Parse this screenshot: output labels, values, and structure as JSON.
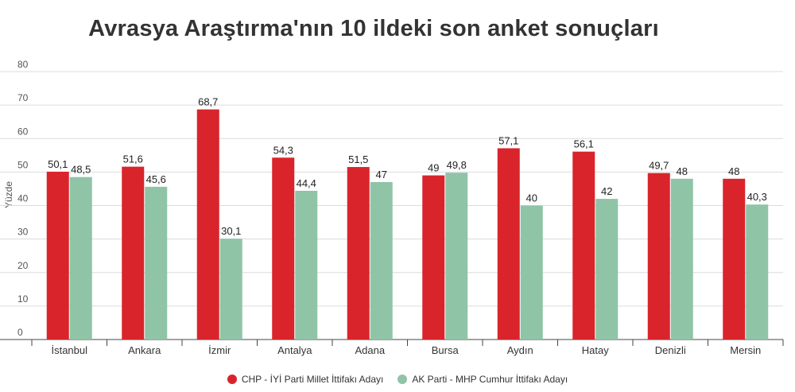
{
  "chart_data": {
    "type": "bar",
    "title": "Avrasya Araştırma'nın 10 ildeki son anket sonuçları",
    "ylabel": "Yüzde",
    "xlabel": "",
    "ylim": [
      0,
      80
    ],
    "yticks": [
      0,
      10,
      20,
      30,
      40,
      50,
      60,
      70,
      80
    ],
    "grid": true,
    "legend_position": "bottom",
    "categories": [
      "İstanbul",
      "Ankara",
      "İzmir",
      "Antalya",
      "Adana",
      "Bursa",
      "Aydın",
      "Hatay",
      "Denizli",
      "Mersin"
    ],
    "series": [
      {
        "name": "CHP - İYİ Parti Millet İttifakı Adayı",
        "color": "#d9242b",
        "values": [
          50.1,
          51.6,
          68.7,
          54.3,
          51.5,
          49,
          57.1,
          56.1,
          49.7,
          48
        ],
        "labels": [
          "50,1",
          "51,6",
          "68,7",
          "54,3",
          "51,5",
          "49",
          "57,1",
          "56,1",
          "49,7",
          "48"
        ]
      },
      {
        "name": "AK Parti - MHP Cumhur İttifakı Adayı",
        "color": "#8fc4a7",
        "values": [
          48.5,
          45.6,
          30.1,
          44.4,
          47,
          49.8,
          40,
          42,
          48,
          40.3
        ],
        "labels": [
          "48,5",
          "45,6",
          "30,1",
          "44,4",
          "47",
          "49,8",
          "40",
          "42",
          "48",
          "40,3"
        ]
      }
    ]
  }
}
